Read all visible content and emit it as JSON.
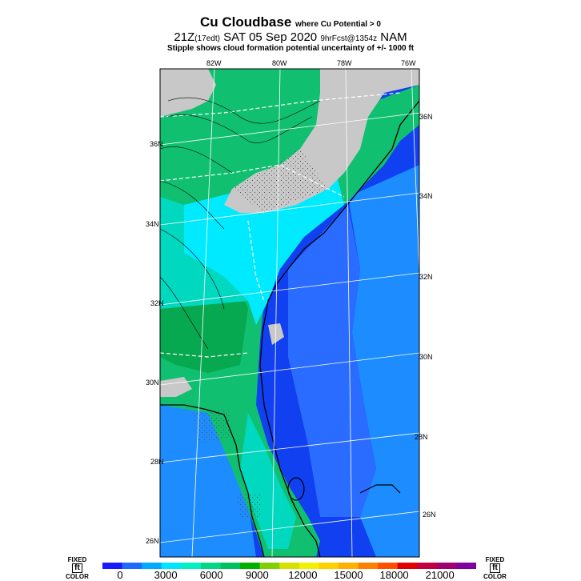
{
  "title": {
    "main": "Cu Cloudbase",
    "sub": "where Cu Potential > 0",
    "line2_main": "21Z",
    "line2_local": "(17edt)",
    "line2_date": "SAT 05 Sep 2020",
    "line2_fcst": "9hrFcst@1354z",
    "line2_model": "NAM",
    "line3": "Stipple shows cloud formation potential uncertainty of +/- 1000 ft"
  },
  "lon_labels": [
    "82W",
    "80W",
    "78W",
    "76W"
  ],
  "lat_labels_left": [
    "36N",
    "34N",
    "32N",
    "30N",
    "28N",
    "26N"
  ],
  "lat_labels_right": [
    "36N",
    "34N",
    "32N",
    "30N",
    "28N",
    "26N"
  ],
  "colorbar": {
    "ticks": [
      "0",
      "3000",
      "6000",
      "9000",
      "12000",
      "15000",
      "18000",
      "21000"
    ],
    "colors": [
      "#1a1aff",
      "#1e6bff",
      "#00aaff",
      "#00e5ff",
      "#00f0c0",
      "#00d884",
      "#00c060",
      "#00b000",
      "#80d000",
      "#d8e000",
      "#f0f000",
      "#ffd000",
      "#ffb000",
      "#ff8000",
      "#ff5000",
      "#e00000",
      "#c00040",
      "#a00070",
      "#8000a0"
    ],
    "left_corner": {
      "top": "FIXED",
      "box": "ft",
      "bottom": "COLOR"
    },
    "right_corner": {
      "top": "FIXED",
      "box": "ft",
      "bottom": "COLOR"
    }
  },
  "map_colors": {
    "ocean_deep": "#1040f0",
    "ocean_mid": "#2a6cff",
    "ocean_light": "#1d8cff",
    "cyan": "#00eaff",
    "teal": "#00d8c0",
    "green": "#10c070",
    "darkgreen": "#06a850",
    "gray": "#c8c8c8"
  }
}
